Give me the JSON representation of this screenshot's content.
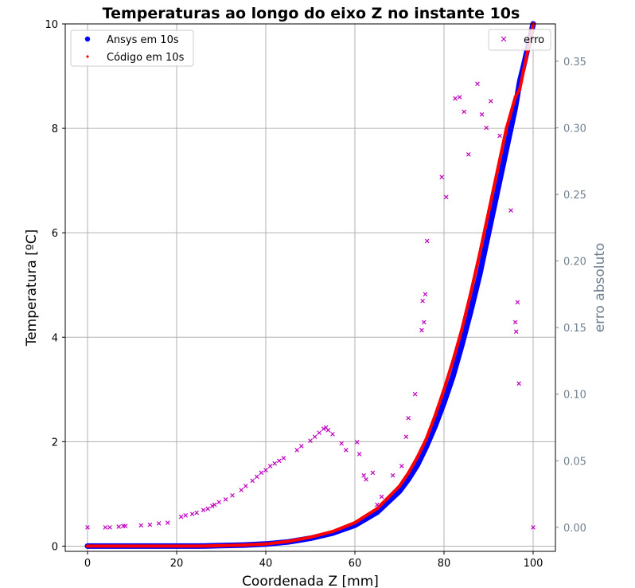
{
  "chart_data": {
    "type": "scatter",
    "title": "Temperaturas ao longo do eixo Z no instante 10s",
    "xlabel": "Coordenada Z [mm]",
    "ylabel": "Temperatura [ºC]",
    "y2label": "erro absoluto",
    "xlim": [
      -5,
      105
    ],
    "ylim": [
      -0.1,
      10
    ],
    "y2lim": [
      -0.018,
      0.378
    ],
    "xticks": [
      "0",
      "20",
      "40",
      "60",
      "80",
      "100"
    ],
    "yticks": [
      "0",
      "2",
      "4",
      "6",
      "8",
      "10"
    ],
    "y2ticks": [
      "0.00",
      "0.05",
      "0.10",
      "0.15",
      "0.20",
      "0.25",
      "0.30",
      "0.35"
    ],
    "grid": true,
    "legend_left": {
      "placement": "upper-left",
      "entries": [
        "Ansys em 10s",
        "Código em 10s"
      ]
    },
    "legend_right": {
      "placement": "upper-right",
      "entries": [
        "erro"
      ]
    },
    "colors": {
      "ansys": "#0000ff",
      "codigo": "#ff0000",
      "erro": "#bf00bf",
      "right_axis": "#708090"
    },
    "series": [
      {
        "name": "Ansys em 10s",
        "axis": "left",
        "marker": "circle",
        "x": [
          0,
          2,
          4,
          6,
          8,
          10,
          15,
          20,
          25,
          30,
          35,
          40,
          45,
          50,
          55,
          60,
          65,
          70,
          72,
          74,
          76,
          78,
          80,
          82,
          84,
          86,
          88,
          90,
          92,
          94,
          96,
          97,
          98,
          100
        ],
        "y": [
          0,
          0,
          0,
          0,
          0,
          0,
          0,
          0,
          0,
          0.01,
          0.02,
          0.04,
          0.08,
          0.15,
          0.25,
          0.4,
          0.65,
          1.05,
          1.28,
          1.55,
          1.9,
          2.3,
          2.75,
          3.25,
          3.85,
          4.5,
          5.2,
          6.0,
          6.8,
          7.6,
          8.4,
          8.9,
          9.25,
          10.0
        ]
      },
      {
        "name": "Código em 10s",
        "axis": "left",
        "marker": "point",
        "x": [
          0,
          2,
          4,
          6,
          8,
          10,
          15,
          20,
          25,
          30,
          35,
          40,
          45,
          50,
          55,
          60,
          65,
          70,
          72,
          74,
          76,
          78,
          80,
          82,
          84,
          86,
          88,
          90,
          92,
          94,
          96,
          97,
          100
        ],
        "y": [
          0,
          0,
          0,
          0,
          0,
          0,
          0,
          0,
          0,
          0.01,
          0.02,
          0.04,
          0.09,
          0.17,
          0.28,
          0.45,
          0.72,
          1.15,
          1.4,
          1.7,
          2.05,
          2.5,
          3.0,
          3.55,
          4.15,
          4.85,
          5.6,
          6.4,
          7.2,
          8.0,
          8.6,
          8.75,
          10.0
        ]
      },
      {
        "name": "erro",
        "axis": "right",
        "marker": "x",
        "x": [
          0,
          100,
          4,
          5,
          7,
          8,
          8.5,
          12,
          14,
          16,
          18,
          21,
          22,
          23.5,
          24.5,
          26,
          27,
          28,
          28.5,
          29.5,
          31,
          32.5,
          34.5,
          35.5,
          37,
          38,
          39,
          40,
          41,
          42,
          43,
          44,
          47,
          48,
          50,
          51,
          52,
          53,
          53.5,
          54,
          55,
          57,
          58,
          60.5,
          61,
          62,
          62.5,
          64,
          65,
          66,
          68.5,
          70.5,
          71.5,
          72,
          73.5,
          75,
          75.2,
          75.5,
          75.8,
          76.2,
          79.5,
          80.5,
          82.5,
          83.5,
          84.5,
          85.5,
          87.5,
          88.5,
          89.5,
          90.5,
          92.5,
          95,
          96,
          96.2,
          96.5,
          96.8
        ],
        "y": [
          0.0,
          0.0,
          0.0,
          0.0,
          0.0005,
          0.001,
          0.001,
          0.0015,
          0.002,
          0.003,
          0.0035,
          0.008,
          0.009,
          0.01,
          0.011,
          0.013,
          0.014,
          0.016,
          0.017,
          0.019,
          0.021,
          0.024,
          0.028,
          0.031,
          0.035,
          0.038,
          0.041,
          0.043,
          0.046,
          0.048,
          0.05,
          0.052,
          0.058,
          0.061,
          0.065,
          0.068,
          0.071,
          0.074,
          0.075,
          0.073,
          0.07,
          0.063,
          0.058,
          0.064,
          0.055,
          0.039,
          0.036,
          0.041,
          0.017,
          0.023,
          0.039,
          0.046,
          0.068,
          0.082,
          0.1,
          0.148,
          0.17,
          0.154,
          0.175,
          0.215,
          0.263,
          0.248,
          0.322,
          0.323,
          0.312,
          0.28,
          0.333,
          0.31,
          0.3,
          0.32,
          0.294,
          0.238,
          0.154,
          0.147,
          0.169,
          0.108
        ]
      }
    ]
  }
}
